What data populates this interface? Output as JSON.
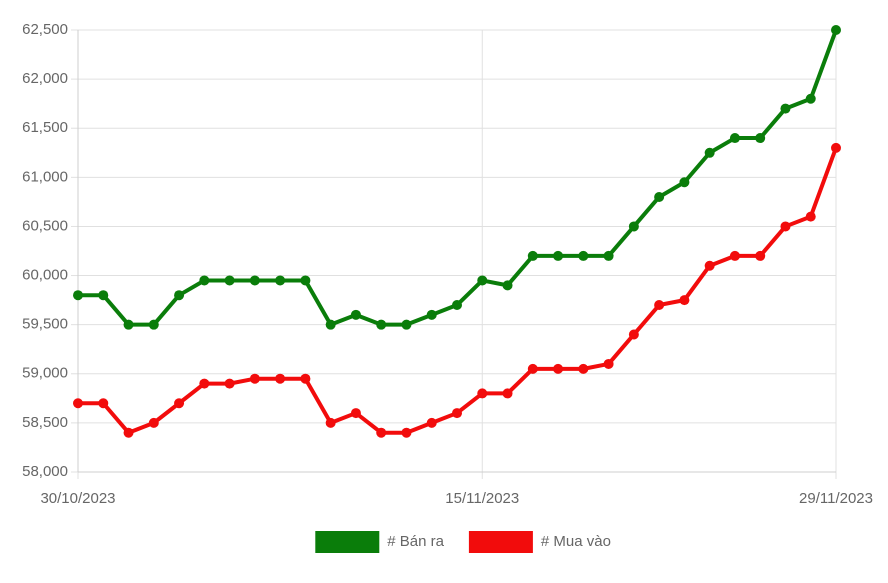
{
  "chart_data": {
    "type": "line",
    "categories": [
      "30/10/2023",
      null,
      null,
      null,
      null,
      null,
      null,
      null,
      null,
      null,
      null,
      null,
      null,
      null,
      null,
      null,
      "15/11/2023",
      null,
      null,
      null,
      null,
      null,
      null,
      null,
      null,
      null,
      null,
      null,
      null,
      null,
      "29/11/2023"
    ],
    "series": [
      {
        "name": "# Bán ra",
        "color": "#0a7d0a",
        "values": [
          59800,
          59800,
          59500,
          59500,
          59800,
          59950,
          59950,
          59950,
          59950,
          59950,
          59500,
          59600,
          59500,
          59500,
          59600,
          59700,
          59950,
          59900,
          60200,
          60200,
          60200,
          60200,
          60500,
          60800,
          60950,
          61250,
          61400,
          61400,
          61700,
          61800,
          62500
        ]
      },
      {
        "name": "# Mua vào",
        "color": "#f20c0c",
        "values": [
          58700,
          58700,
          58400,
          58500,
          58700,
          58900,
          58900,
          58950,
          58950,
          58950,
          58500,
          58600,
          58400,
          58400,
          58500,
          58600,
          58800,
          58800,
          59050,
          59050,
          59050,
          59100,
          59400,
          59700,
          59750,
          60100,
          60200,
          60200,
          60500,
          60600,
          61300
        ]
      }
    ],
    "ylim": [
      58000,
      62500
    ],
    "yticks": [
      {
        "value": 58000,
        "label": "58,000"
      },
      {
        "value": 58500,
        "label": "58,500"
      },
      {
        "value": 59000,
        "label": "59,000"
      },
      {
        "value": 59500,
        "label": "59,500"
      },
      {
        "value": 60000,
        "label": "60,000"
      },
      {
        "value": 60500,
        "label": "60,500"
      },
      {
        "value": 61000,
        "label": "61,000"
      },
      {
        "value": 61500,
        "label": "61,500"
      },
      {
        "value": 62000,
        "label": "62,000"
      },
      {
        "value": 62500,
        "label": "62,500"
      }
    ],
    "grid": true,
    "legend": "bottom"
  }
}
